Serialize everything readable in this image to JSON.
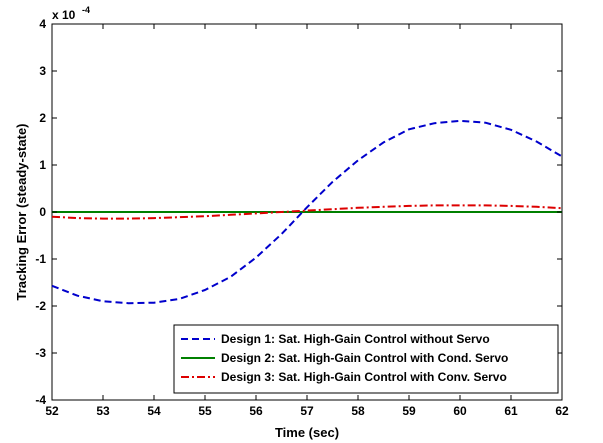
{
  "chart_data": {
    "type": "line",
    "xlabel": "Time (sec)",
    "ylabel": "Tracking Error (steady-state)",
    "xlim": [
      52,
      62
    ],
    "ylim": [
      -4,
      4
    ],
    "y_scale_multiplier": {
      "base": "x 10",
      "exponent": "-4"
    },
    "x_ticks": [
      52,
      53,
      54,
      55,
      56,
      57,
      58,
      59,
      60,
      61,
      62
    ],
    "y_ticks": [
      -4,
      -3,
      -2,
      -1,
      0,
      1,
      2,
      3,
      4
    ],
    "grid": false,
    "legend_position": "bottom-right",
    "x": [
      52.0,
      52.5,
      53.0,
      53.5,
      54.0,
      54.5,
      55.0,
      55.5,
      56.0,
      56.5,
      57.0,
      57.5,
      58.0,
      58.5,
      59.0,
      59.5,
      60.0,
      60.5,
      61.0,
      61.5,
      62.0
    ],
    "series": [
      {
        "name": "Design 1: Sat. High-Gain Control without Servo",
        "color": "#0000CC",
        "style": "dashed",
        "values": [
          -1.57,
          -1.78,
          -1.9,
          -1.94,
          -1.93,
          -1.85,
          -1.66,
          -1.38,
          -0.97,
          -0.47,
          0.1,
          0.64,
          1.1,
          1.48,
          1.76,
          1.89,
          1.94,
          1.9,
          1.75,
          1.5,
          1.18
        ]
      },
      {
        "name": "Design 2: Sat. High-Gain Control with Cond. Servo",
        "color": "#008000",
        "style": "solid",
        "values": [
          0,
          0,
          0,
          0,
          0,
          0,
          0,
          0,
          0,
          0,
          0,
          0,
          0,
          0,
          0,
          0,
          0,
          0,
          0,
          0,
          0
        ]
      },
      {
        "name": "Design 3: Sat. High-Gain Control with Conv. Servo",
        "color": "#DD0000",
        "style": "dashdot",
        "values": [
          -0.1,
          -0.13,
          -0.14,
          -0.14,
          -0.13,
          -0.11,
          -0.09,
          -0.06,
          -0.03,
          0.0,
          0.03,
          0.06,
          0.09,
          0.11,
          0.13,
          0.14,
          0.14,
          0.14,
          0.13,
          0.11,
          0.08
        ]
      }
    ]
  }
}
